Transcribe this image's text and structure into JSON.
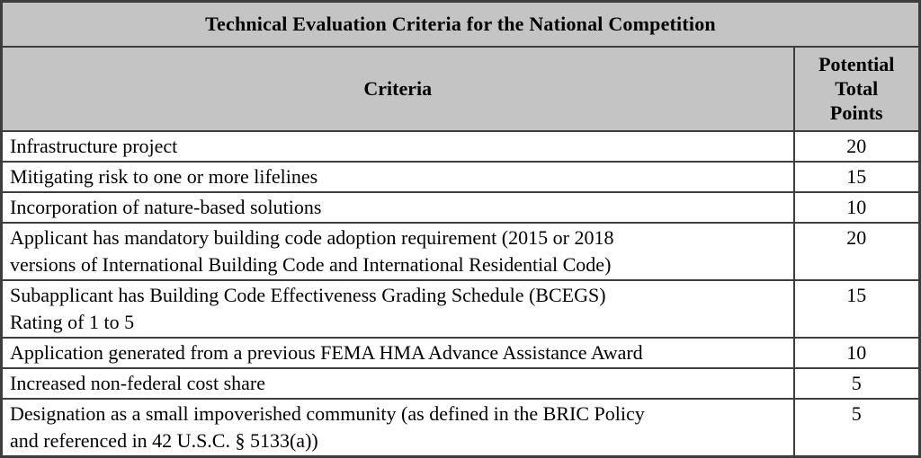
{
  "document": {
    "title": "Technical Evaluation Criteria for the National Competition",
    "columns": {
      "criteria": "Criteria",
      "points": "Potential Total Points"
    },
    "rows": [
      {
        "criteria": "Infrastructure project",
        "points": "20"
      },
      {
        "criteria": "Mitigating risk to one or more lifelines",
        "points": "15"
      },
      {
        "criteria": "Incorporation of nature-based solutions",
        "points": "10"
      },
      {
        "criteria": "Applicant has mandatory building code adoption requirement (2015 or 2018\nversions of International Building Code and International Residential Code)",
        "points": "20"
      },
      {
        "criteria": "Subapplicant has Building Code Effectiveness Grading Schedule (BCEGS)\nRating of 1 to 5",
        "points": "15"
      },
      {
        "criteria": "Application generated from a previous FEMA HMA Advance Assistance Award",
        "points": "10"
      },
      {
        "criteria": "Increased non-federal cost share",
        "points": "5"
      },
      {
        "criteria": "Designation as a small impoverished community (as defined in the BRIC Policy\nand referenced in 42 U.S.C. § 5133(a))",
        "points": "5"
      }
    ],
    "colors": {
      "header_bg": "#c4c4c4",
      "border": "#3d3d3d",
      "text": "#000000",
      "row_bg": "#ffffff"
    }
  }
}
